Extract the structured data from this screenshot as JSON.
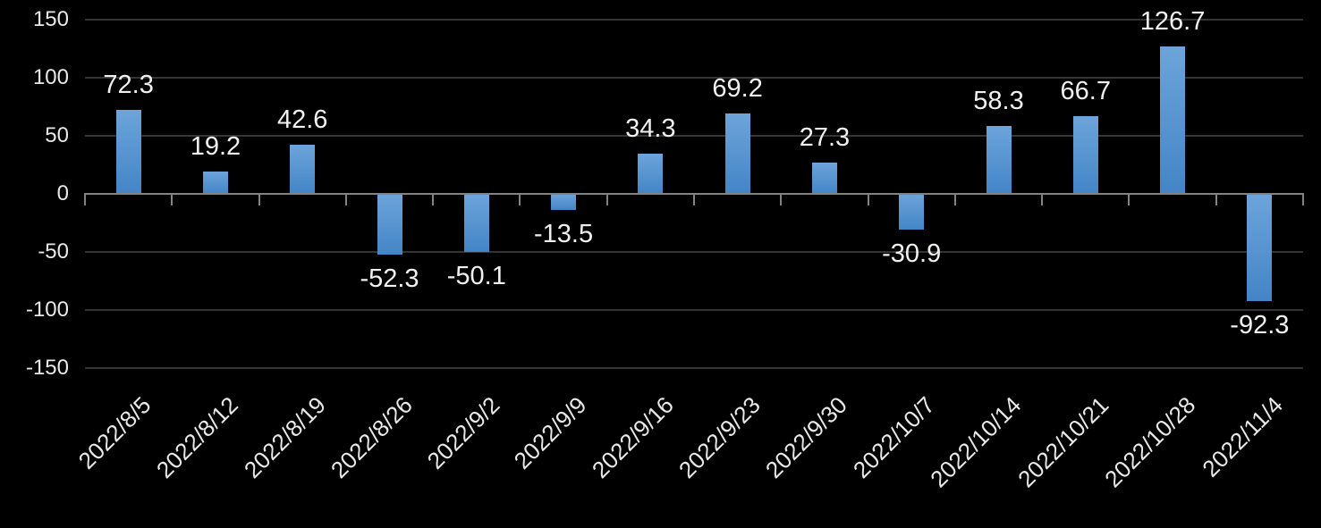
{
  "chart_data": {
    "type": "bar",
    "title": "",
    "xlabel": "",
    "ylabel": "",
    "categories": [
      "2022/8/5",
      "2022/8/12",
      "2022/8/19",
      "2022/8/26",
      "2022/9/2",
      "2022/9/9",
      "2022/9/16",
      "2022/9/23",
      "2022/9/30",
      "2022/10/7",
      "2022/10/14",
      "2022/10/21",
      "2022/10/28",
      "2022/11/4"
    ],
    "values": [
      72.3,
      19.2,
      42.6,
      -52.3,
      -50.1,
      -13.5,
      34.3,
      69.2,
      27.3,
      -30.9,
      58.3,
      66.7,
      126.7,
      -92.3
    ],
    "value_labels": [
      "72.3",
      "19.2",
      "42.6",
      "-52.3",
      "-50.1",
      "-13.5",
      "34.3",
      "69.2",
      "27.3",
      "-30.9",
      "58.3",
      "66.7",
      "126.7",
      "-92.3"
    ],
    "ylim": [
      -150,
      150
    ],
    "yticks": [
      150,
      100,
      50,
      0,
      -50,
      -100,
      -150
    ],
    "ytick_labels": [
      "150",
      "100",
      "50",
      "0",
      "-50",
      "-100",
      "-150"
    ],
    "x_label_rotation_deg": 45,
    "grid": true,
    "legend_position": "none",
    "data_labels_shown": true,
    "colors": {
      "background": "#000000",
      "bar_gradient_top": "#6da4da",
      "bar_gradient_bottom": "#4385c7",
      "gridline": "#343434",
      "axis_line": "#828282",
      "tick": "#828282",
      "axis_label_text": "#e8e8e8",
      "value_label_text": "#f0f0f0"
    }
  }
}
